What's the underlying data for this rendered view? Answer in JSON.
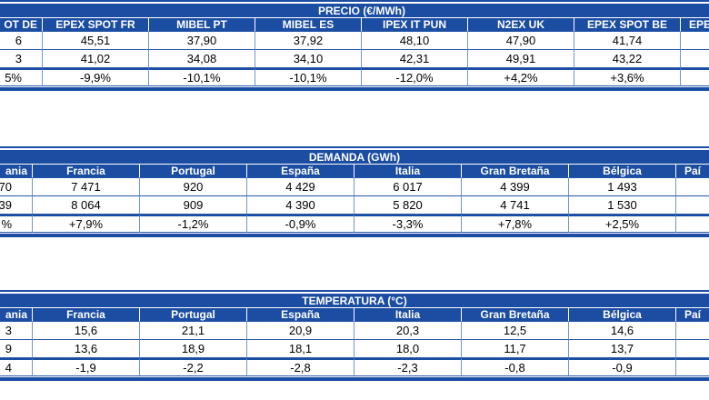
{
  "colors": {
    "band_blue": "#1b4da3",
    "grid_blue": "#2456a8",
    "light_grid_blue": "#6f94d4",
    "text": "#000000",
    "header_text": "#ffffff"
  },
  "tables": [
    {
      "title": "PRECIO (€/MWh)",
      "left_cut": {
        "header": "OT DE",
        "rows": [
          "6",
          "3",
          "5%"
        ]
      },
      "columns": [
        "EPEX SPOT FR",
        "MIBEL PT",
        "MIBEL ES",
        "IPEX IT PUN",
        "N2EX UK",
        "EPEX SPOT BE"
      ],
      "rows": [
        [
          "45,51",
          "37,90",
          "37,92",
          "48,10",
          "47,90",
          "41,74"
        ],
        [
          "41,02",
          "34,08",
          "34,10",
          "42,31",
          "49,91",
          "43,22"
        ]
      ],
      "pct": [
        "-9,9%",
        "-10,1%",
        "-10,1%",
        "-12,0%",
        "+4,2%",
        "+3,6%"
      ],
      "right_cut": {
        "header": "EPE",
        "rows": [
          "",
          "",
          ""
        ]
      }
    },
    {
      "title": "DEMANDA (GWh)",
      "left_cut": {
        "header": "ania",
        "rows": [
          "70",
          "39",
          "%"
        ]
      },
      "columns": [
        "Francia",
        "Portugal",
        "España",
        "Italia",
        "Gran Bretaña",
        "Bélgica"
      ],
      "rows": [
        [
          "7 471",
          "920",
          "4 429",
          "6 017",
          "4 399",
          "1 493"
        ],
        [
          "8 064",
          "909",
          "4 390",
          "5 820",
          "4 741",
          "1 530"
        ]
      ],
      "pct": [
        "+7,9%",
        "-1,2%",
        "-0,9%",
        "-3,3%",
        "+7,8%",
        "+2,5%"
      ],
      "right_cut": {
        "header": "Paí",
        "rows": [
          "",
          "",
          ""
        ]
      }
    },
    {
      "title": "TEMPERATURA (°C)",
      "left_cut": {
        "header": "ania",
        "rows": [
          "3",
          "9",
          "4"
        ]
      },
      "columns": [
        "Francia",
        "Portugal",
        "España",
        "Italia",
        "Gran Bretaña",
        "Bélgica"
      ],
      "rows": [
        [
          "15,6",
          "21,1",
          "20,9",
          "20,3",
          "12,5",
          "14,6"
        ],
        [
          "13,6",
          "18,9",
          "18,1",
          "18,0",
          "11,7",
          "13,7"
        ]
      ],
      "pct": [
        "-1,9",
        "-2,2",
        "-2,8",
        "-2,3",
        "-0,8",
        "-0,9"
      ],
      "right_cut": {
        "header": "Paí",
        "rows": [
          "",
          "",
          ""
        ]
      }
    }
  ]
}
